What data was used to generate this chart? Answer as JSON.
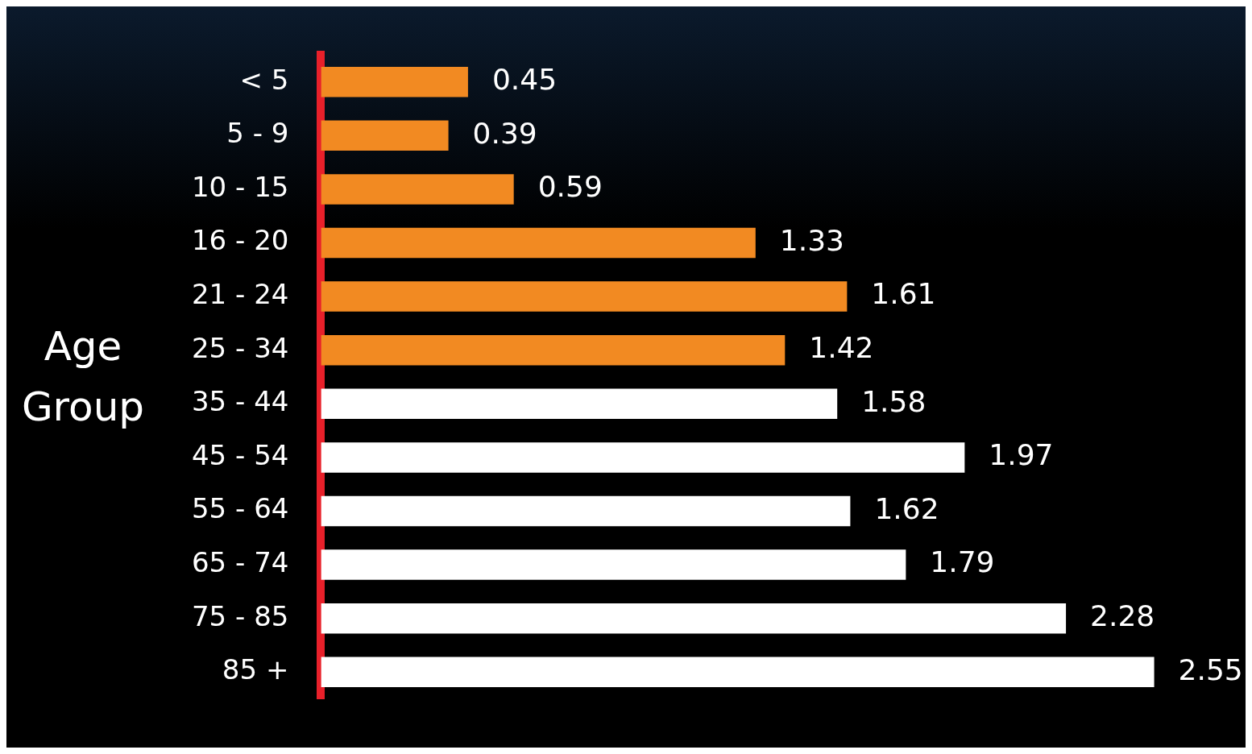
{
  "chart_data": {
    "type": "bar",
    "orientation": "horizontal",
    "ylabel": "Age Group",
    "categories": [
      "< 5",
      "5 - 9",
      "10 - 15",
      "16 - 20",
      "21 - 24",
      "25 - 34",
      "35 - 44",
      "45 - 54",
      "55 - 64",
      "65 - 74",
      "75 - 85",
      "85 +"
    ],
    "values": [
      0.45,
      0.39,
      0.59,
      1.33,
      1.61,
      1.42,
      1.58,
      1.97,
      1.62,
      1.79,
      2.28,
      2.55
    ],
    "colors": [
      "#f28a22",
      "#f28a22",
      "#f28a22",
      "#f28a22",
      "#f28a22",
      "#f28a22",
      "#ffffff",
      "#ffffff",
      "#ffffff",
      "#ffffff",
      "#ffffff",
      "#ffffff"
    ],
    "data_labels": true,
    "grid": false,
    "legend": false
  }
}
